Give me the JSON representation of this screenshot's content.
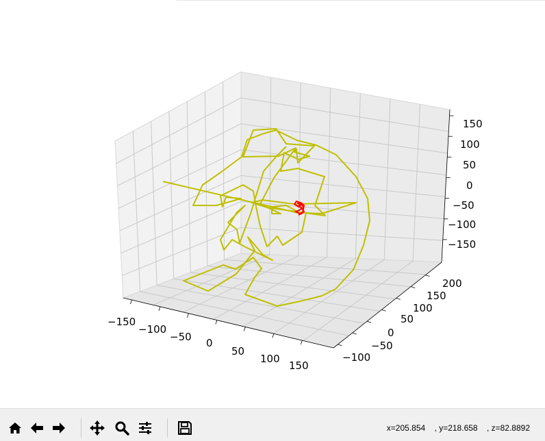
{
  "toolbar": {
    "buttons": [
      {
        "name": "home-button",
        "icon": "home-icon"
      },
      {
        "name": "back-button",
        "icon": "arrow-left-icon"
      },
      {
        "name": "forward-button",
        "icon": "arrow-right-icon"
      },
      {
        "name": "pan-button",
        "icon": "move-icon"
      },
      {
        "name": "zoom-button",
        "icon": "magnifier-icon"
      },
      {
        "name": "configure-subplots-button",
        "icon": "sliders-icon"
      },
      {
        "name": "save-button",
        "icon": "floppy-disk-icon"
      }
    ],
    "coords": {
      "x": "x=205.854",
      "y": ", y=218.658",
      "z": ", z=82.8892"
    }
  },
  "chart_data": {
    "type": "line",
    "projection": "3d",
    "grid": true,
    "x_ticks": [
      "−150",
      "−100",
      "−50",
      "0",
      "50",
      "100",
      "150"
    ],
    "y_ticks": [
      "−100",
      "−50",
      "0",
      "50",
      "100",
      "150",
      "200"
    ],
    "z_ticks": [
      "150",
      "100",
      "50",
      "0",
      "−50",
      "−100",
      "−150"
    ],
    "series": [
      {
        "color": "#bfbf00",
        "style": "random walk (yellow)"
      },
      {
        "color": "#ff0000",
        "style": "small cluster (red)"
      }
    ]
  }
}
